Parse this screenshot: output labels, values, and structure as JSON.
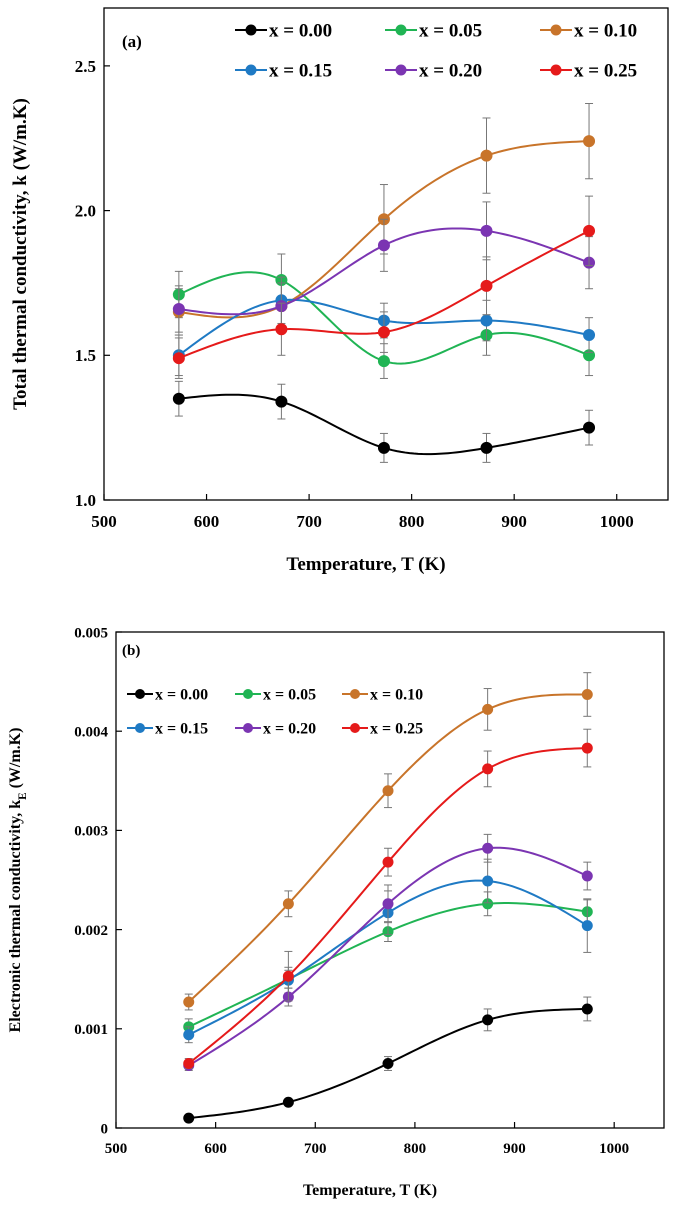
{
  "chart_data": [
    {
      "type": "line",
      "panel_label": "(a)",
      "title": "",
      "xlabel": "Temperature,  T (K)",
      "ylabel": "Total thermal  conductivity,  k (W/m.K)",
      "xlim": [
        500,
        1050
      ],
      "ylim": [
        1.0,
        2.7
      ],
      "xticks": [
        500,
        600,
        700,
        800,
        900,
        1000
      ],
      "xtick_labels": [
        "500",
        "600",
        "700",
        "800",
        "900",
        "1000"
      ],
      "yticks": [
        1.0,
        1.5,
        2.0,
        2.5
      ],
      "ytick_labels": [
        "1.0",
        "1.5",
        "2.0",
        "2.5"
      ],
      "grid": false,
      "legend_position": "top",
      "x": [
        573,
        673,
        773,
        873,
        973
      ],
      "series": [
        {
          "name": "x = 0.00",
          "color": "#000000",
          "values": [
            1.35,
            1.34,
            1.18,
            1.18,
            1.25
          ],
          "errors": [
            0.06,
            0.06,
            0.05,
            0.05,
            0.06
          ]
        },
        {
          "name": "x = 0.05",
          "color": "#20b454",
          "values": [
            1.71,
            1.76,
            1.48,
            1.57,
            1.5
          ],
          "errors": [
            0.08,
            0.09,
            0.06,
            0.07,
            0.07
          ]
        },
        {
          "name": "x = 0.10",
          "color": "#c8742a",
          "values": [
            1.65,
            1.67,
            1.97,
            2.19,
            2.24
          ],
          "errors": [
            0.08,
            0.08,
            0.12,
            0.13,
            0.13
          ]
        },
        {
          "name": "x = 0.15",
          "color": "#1f7ac4",
          "values": [
            1.5,
            1.69,
            1.62,
            1.62,
            1.57
          ],
          "errors": [
            0.07,
            0.08,
            0.06,
            0.07,
            0.06
          ]
        },
        {
          "name": "x = 0.20",
          "color": "#7b35b2",
          "values": [
            1.66,
            1.67,
            1.88,
            1.93,
            1.82
          ],
          "errors": [
            0.08,
            0.08,
            0.09,
            0.1,
            0.09
          ]
        },
        {
          "name": "x = 0.25",
          "color": "#e51a1a",
          "values": [
            1.49,
            1.59,
            1.58,
            1.74,
            1.93
          ],
          "errors": [
            0.07,
            0.09,
            0.07,
            0.1,
            0.12
          ]
        }
      ]
    },
    {
      "type": "line",
      "panel_label": "(b)",
      "title": "",
      "xlabel": "Temperature, T (K)",
      "ylabel": "Electronic thermal conductivity,  k",
      "ylabel_subscript": "E",
      "ylabel_unit": " (W/m.K)",
      "xlim": [
        500,
        1050
      ],
      "ylim": [
        0,
        0.005
      ],
      "xticks": [
        500,
        600,
        700,
        800,
        900,
        1000
      ],
      "xtick_labels": [
        "500",
        "600",
        "700",
        "800",
        "900",
        "1000"
      ],
      "yticks": [
        0,
        0.001,
        0.002,
        0.003,
        0.004,
        0.005
      ],
      "ytick_labels": [
        "0",
        "0.001",
        "0.002",
        "0.003",
        "0.004",
        "0.005"
      ],
      "grid": false,
      "legend_position": "top-left",
      "x": [
        573,
        673,
        773,
        873,
        973
      ],
      "series": [
        {
          "name": "x = 0.00",
          "color": "#000000",
          "values": [
            0.0001,
            0.00026,
            0.00065,
            0.00109,
            0.0012
          ],
          "errors": [
            2e-05,
            3e-05,
            7e-05,
            0.00011,
            0.00012
          ]
        },
        {
          "name": "x = 0.05",
          "color": "#20b454",
          "values": [
            0.00102,
            0.0015,
            0.00198,
            0.00226,
            0.00218
          ],
          "errors": [
            8e-05,
            9e-05,
            0.0001,
            0.00012,
            0.00012
          ]
        },
        {
          "name": "x = 0.10",
          "color": "#c8742a",
          "values": [
            0.00127,
            0.00226,
            0.0034,
            0.00422,
            0.00437
          ],
          "errors": [
            8e-05,
            0.00013,
            0.00017,
            0.00021,
            0.00022
          ]
        },
        {
          "name": "x = 0.15",
          "color": "#1f7ac4",
          "values": [
            0.00094,
            0.00149,
            0.00217,
            0.00249,
            0.00204
          ],
          "errors": [
            8e-05,
            0.00013,
            0.00022,
            0.00022,
            0.00027
          ]
        },
        {
          "name": "x = 0.20",
          "color": "#7b35b2",
          "values": [
            0.00063,
            0.00132,
            0.00226,
            0.00282,
            0.00254
          ],
          "errors": [
            5e-05,
            9e-05,
            0.00019,
            0.00014,
            0.00014
          ]
        },
        {
          "name": "x = 0.25",
          "color": "#e51a1a",
          "values": [
            0.00065,
            0.00153,
            0.00268,
            0.00362,
            0.00383
          ],
          "errors": [
            5e-05,
            0.00025,
            0.00014,
            0.00018,
            0.00019
          ]
        }
      ]
    }
  ]
}
